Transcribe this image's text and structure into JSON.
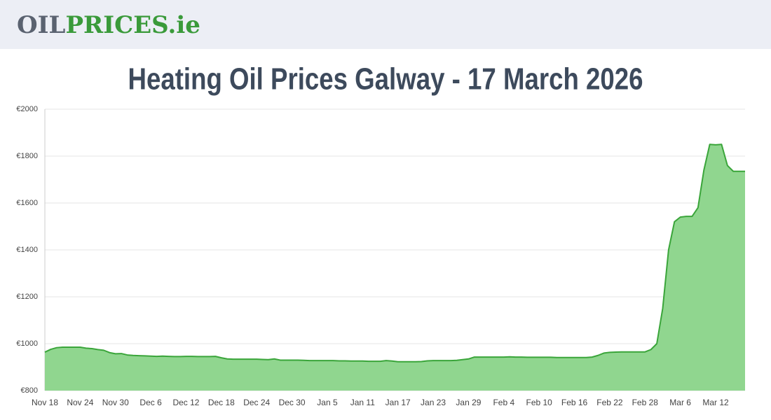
{
  "header": {
    "logo": [
      "OIL",
      "PRICES.ie"
    ]
  },
  "chart_data": {
    "type": "area",
    "title": "Heating Oil Prices Galway - 17 March 2026",
    "categories": [
      "Nov 18",
      null,
      null,
      null,
      null,
      null,
      "Nov 24",
      null,
      null,
      null,
      null,
      null,
      "Nov 30",
      null,
      null,
      null,
      null,
      null,
      "Dec 6",
      null,
      null,
      null,
      null,
      null,
      "Dec 12",
      null,
      null,
      null,
      null,
      null,
      "Dec 18",
      null,
      null,
      null,
      null,
      null,
      "Dec 24",
      null,
      null,
      null,
      null,
      null,
      "Dec 30",
      null,
      null,
      null,
      null,
      null,
      "Jan 5",
      null,
      null,
      null,
      null,
      null,
      "Jan 11",
      null,
      null,
      null,
      null,
      null,
      "Jan 17",
      null,
      null,
      null,
      null,
      null,
      "Jan 23",
      null,
      null,
      null,
      null,
      null,
      "Jan 29",
      null,
      null,
      null,
      null,
      null,
      "Feb 4",
      null,
      null,
      null,
      null,
      null,
      "Feb 10",
      null,
      null,
      null,
      null,
      null,
      "Feb 16",
      null,
      null,
      null,
      null,
      null,
      "Feb 22",
      null,
      null,
      null,
      null,
      null,
      "Feb 28",
      null,
      null,
      null,
      null,
      null,
      "Mar 6",
      null,
      null,
      null,
      null,
      null,
      "Mar 12",
      null,
      null,
      null,
      null,
      null
    ],
    "values": [
      964,
      976,
      983,
      985,
      985,
      985,
      985,
      981,
      979,
      975,
      972,
      962,
      957,
      958,
      952,
      950,
      949,
      948,
      947,
      946,
      947,
      946,
      945,
      945,
      946,
      946,
      945,
      945,
      945,
      946,
      940,
      935,
      934,
      934,
      934,
      934,
      934,
      933,
      932,
      935,
      930,
      930,
      930,
      930,
      929,
      928,
      928,
      928,
      928,
      928,
      927,
      927,
      926,
      926,
      926,
      925,
      925,
      925,
      928,
      926,
      923,
      923,
      923,
      923,
      924,
      927,
      928,
      928,
      928,
      928,
      929,
      932,
      935,
      943,
      943,
      943,
      943,
      943,
      943,
      944,
      943,
      943,
      942,
      942,
      942,
      942,
      942,
      941,
      941,
      941,
      941,
      941,
      941,
      943,
      950,
      960,
      963,
      964,
      965,
      965,
      965,
      965,
      965,
      975,
      1000,
      1150,
      1400,
      1520,
      1540,
      1543,
      1543,
      1580,
      1740,
      1850,
      1848,
      1850,
      1760,
      1735,
      1735,
      1735
    ],
    "color": "#3aa53a",
    "fill_color": "#90d68f",
    "ylim": [
      800,
      2000
    ],
    "yticks": [
      {
        "value": 800,
        "label": "€800"
      },
      {
        "value": 1000,
        "label": "€1000"
      },
      {
        "value": 1200,
        "label": "€1200"
      },
      {
        "value": 1400,
        "label": "€1400"
      },
      {
        "value": 1600,
        "label": "€1600"
      },
      {
        "value": 1800,
        "label": "€1800"
      },
      {
        "value": 2000,
        "label": "€2000"
      }
    ],
    "grid": true
  }
}
